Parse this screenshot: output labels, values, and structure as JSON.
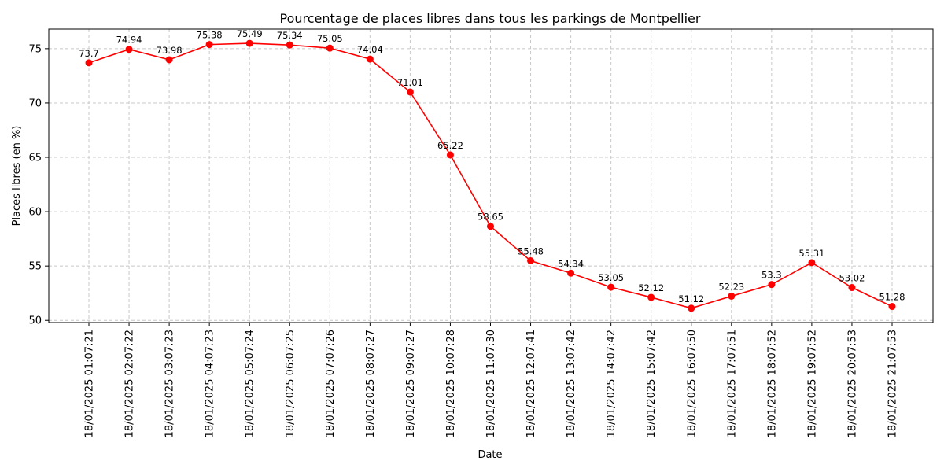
{
  "chart_data": {
    "type": "line",
    "title": "Pourcentage de places libres dans tous les parkings de Montpellier",
    "xlabel": "Date",
    "ylabel": "Places libres (en %)",
    "ylim": [
      49.8,
      76.8
    ],
    "yticks": [
      50,
      55,
      60,
      65,
      70,
      75
    ],
    "grid": true,
    "color": "#ff0000",
    "x": [
      "18/01/2025 01:07:21",
      "18/01/2025 02:07:22",
      "18/01/2025 03:07:23",
      "18/01/2025 04:07:23",
      "18/01/2025 05:07:24",
      "18/01/2025 06:07:25",
      "18/01/2025 07:07:26",
      "18/01/2025 08:07:27",
      "18/01/2025 09:07:27",
      "18/01/2025 10:07:28",
      "18/01/2025 11:07:30",
      "18/01/2025 12:07:41",
      "18/01/2025 13:07:42",
      "18/01/2025 14:07:42",
      "18/01/2025 15:07:42",
      "18/01/2025 16:07:50",
      "18/01/2025 17:07:51",
      "18/01/2025 18:07:52",
      "18/01/2025 19:07:52",
      "18/01/2025 20:07:53",
      "18/01/2025 21:07:53"
    ],
    "values": [
      73.7,
      74.94,
      73.98,
      75.38,
      75.49,
      75.34,
      75.05,
      74.04,
      71.01,
      65.22,
      58.65,
      55.48,
      54.34,
      53.05,
      52.12,
      51.12,
      52.23,
      53.3,
      55.31,
      53.02,
      51.28
    ],
    "value_labels": [
      "73.7",
      "74.94",
      "73.98",
      "75.38",
      "75.49",
      "75.34",
      "75.05",
      "74.04",
      "71.01",
      "65.22",
      "58.65",
      "55.48",
      "54.34",
      "53.05",
      "52.12",
      "51.12",
      "52.23",
      "53.3",
      "55.31",
      "53.02",
      "51.28"
    ]
  }
}
